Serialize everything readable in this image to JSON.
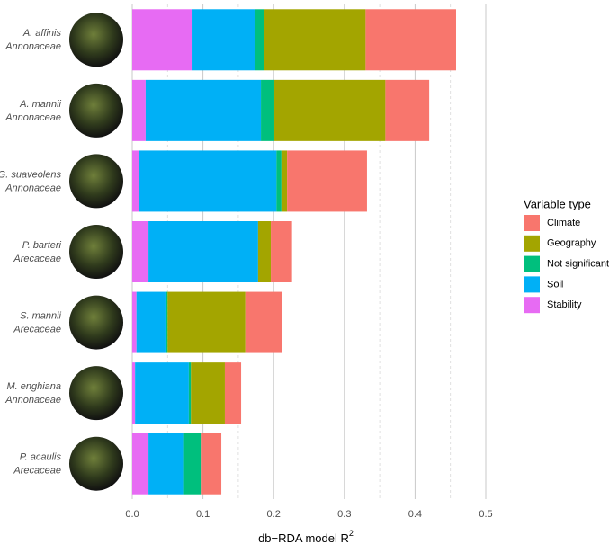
{
  "chart_data": {
    "type": "stacked-bar-horizontal",
    "categories": [
      "A. affinis",
      "A. mannii",
      "G. suaveolens",
      "P. barteri",
      "S. mannii",
      "M. enghiana",
      "P. acaulis"
    ],
    "families": [
      "Annonaceae",
      "Annonaceae",
      "Annonaceae",
      "Arecaceae",
      "Arecaceae",
      "Annonaceae",
      "Arecaceae"
    ],
    "series": [
      {
        "name": "Climate",
        "color": "#F8766D",
        "values": [
          0.128,
          0.062,
          0.113,
          0.03,
          0.052,
          0.023,
          0.029
        ]
      },
      {
        "name": "Geography",
        "color": "#A3A500",
        "values": [
          0.144,
          0.157,
          0.008,
          0.018,
          0.11,
          0.048,
          0
        ]
      },
      {
        "name": "Not significant",
        "color": "#00BF7D",
        "values": [
          0.012,
          0.019,
          0.007,
          0,
          0.003,
          0.003,
          0.025
        ]
      },
      {
        "name": "Soil",
        "color": "#00B0F6",
        "values": [
          0.09,
          0.163,
          0.194,
          0.155,
          0.041,
          0.076,
          0.049
        ]
      },
      {
        "name": "Stability",
        "color": "#E76BF3",
        "values": [
          0.084,
          0.019,
          0.01,
          0.023,
          0.006,
          0.004,
          0.023
        ]
      }
    ],
    "legend_title": "Variable type",
    "legend_position": "right",
    "x_label": "db−RDA model R",
    "x_label_superscript": "2",
    "xlim": [
      0,
      0.5
    ],
    "xticks": [
      {
        "value": 0,
        "label": "0.0"
      },
      0.1,
      0.2,
      0.3,
      0.4,
      0.5
    ],
    "grid": true
  }
}
